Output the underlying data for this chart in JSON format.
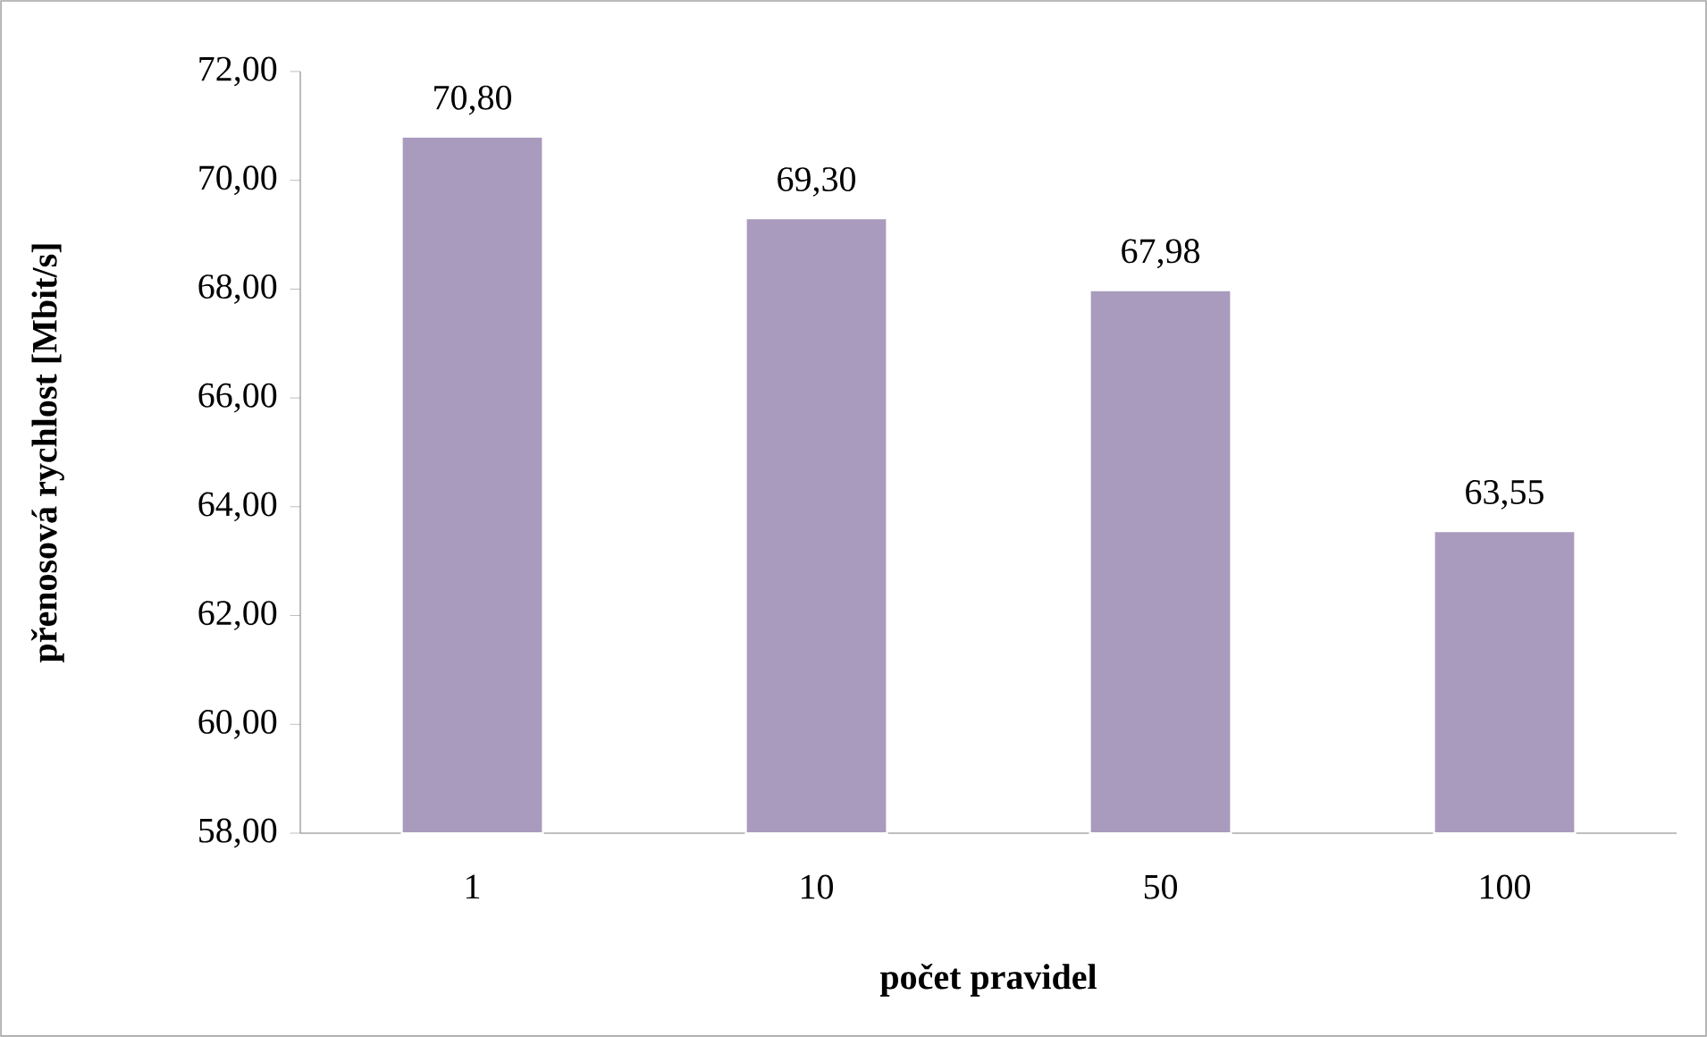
{
  "chart_data": {
    "type": "bar",
    "categories": [
      "1",
      "10",
      "50",
      "100"
    ],
    "values": [
      70.8,
      69.3,
      67.98,
      63.55
    ],
    "value_labels": [
      "70,80",
      "69,30",
      "67,98",
      "63,55"
    ],
    "color": "#a99bbd",
    "xlabel": "počet pravidel",
    "ylabel": "přenosová rychlost [Mbit/s]",
    "ylim": [
      58,
      72
    ],
    "yticks": [
      {
        "value": 58,
        "label": "58,00"
      },
      {
        "value": 60,
        "label": "60,00"
      },
      {
        "value": 62,
        "label": "62,00"
      },
      {
        "value": 64,
        "label": "64,00"
      },
      {
        "value": 66,
        "label": "66,00"
      },
      {
        "value": 68,
        "label": "68,00"
      },
      {
        "value": 70,
        "label": "70,00"
      },
      {
        "value": 72,
        "label": "72,00"
      }
    ],
    "grid": false
  }
}
